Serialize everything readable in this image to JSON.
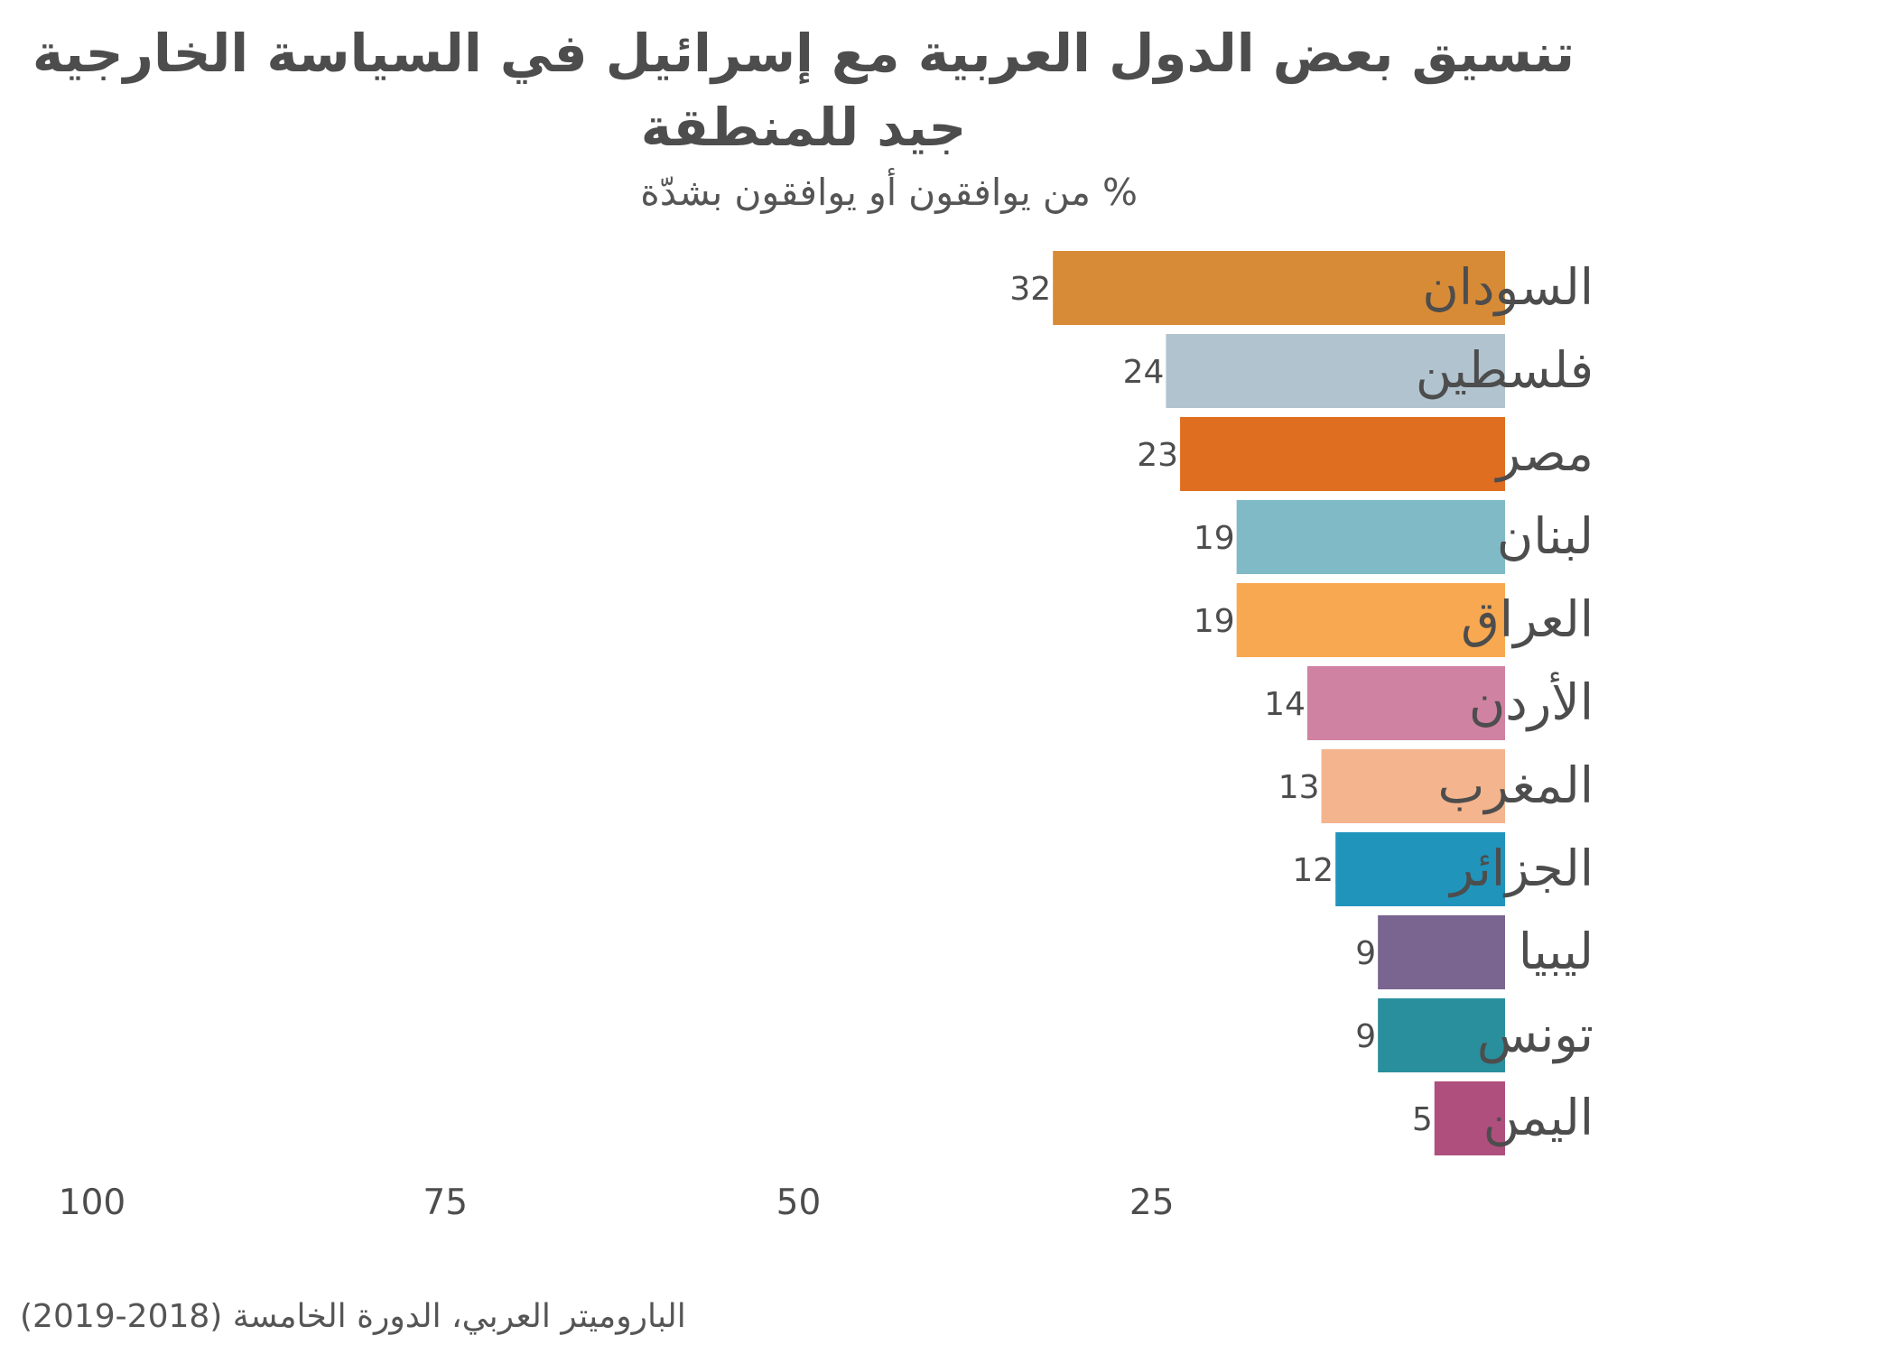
{
  "chart_data": {
    "type": "bar",
    "orientation": "horizontal",
    "title": "تنسيق بعض الدول العربية مع إسرائيل في السياسة الخارجية جيد للمنطقة",
    "subtitle": "% من يوافقون أو يوافقون بشدّة",
    "caption": "الباروميتر العربي، الدورة الخامسة (2018-2019)",
    "xlim": [
      0,
      100
    ],
    "x_reversed": true,
    "xticks": [
      100,
      75,
      50,
      25
    ],
    "grid": false,
    "legend": "none",
    "categories": [
      "السودان",
      "فلسطين",
      "مصر",
      "لبنان",
      "العراق",
      "الأردن",
      "المغرب",
      "الجزائر",
      "ليبيا",
      "تونس",
      "اليمن"
    ],
    "values": [
      32,
      24,
      23,
      19,
      19,
      14,
      13,
      12,
      9,
      9,
      5
    ],
    "colors": [
      "#d88b36",
      "#b1c3cf",
      "#df6e20",
      "#80bac7",
      "#f8a850",
      "#cf82a1",
      "#f4b48d",
      "#2094bb",
      "#7a6490",
      "#2a8f9d",
      "#ae4f7e"
    ]
  }
}
